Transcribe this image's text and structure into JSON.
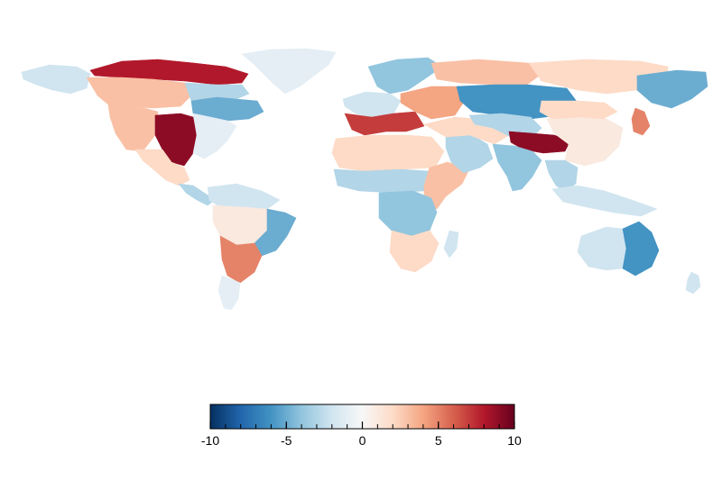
{
  "map": {
    "type": "choropleth-world",
    "projection": "equirectangular",
    "regions": [
      {
        "name": "canadian-arctic",
        "value": 8
      },
      {
        "name": "alaska",
        "value": -2
      },
      {
        "name": "western-canada",
        "value": 3
      },
      {
        "name": "hudson-bay-region",
        "value": -3
      },
      {
        "name": "great-lakes-east-canada",
        "value": -5
      },
      {
        "name": "western-usa",
        "value": 3
      },
      {
        "name": "southern-great-plains",
        "value": 9
      },
      {
        "name": "eastern-usa",
        "value": -1
      },
      {
        "name": "greenland",
        "value": -1
      },
      {
        "name": "mexico",
        "value": 2
      },
      {
        "name": "central-america",
        "value": -3
      },
      {
        "name": "northern-south-america",
        "value": -2
      },
      {
        "name": "amazon",
        "value": 1
      },
      {
        "name": "eastern-brazil",
        "value": -5
      },
      {
        "name": "gran-chaco",
        "value": 5
      },
      {
        "name": "southern-andes-patagonia",
        "value": -1
      },
      {
        "name": "scandinavia",
        "value": -4
      },
      {
        "name": "western-europe",
        "value": -2
      },
      {
        "name": "mediterranean-europe",
        "value": 7
      },
      {
        "name": "eastern-europe",
        "value": 4
      },
      {
        "name": "northern-russia",
        "value": 3
      },
      {
        "name": "west-siberia",
        "value": -6
      },
      {
        "name": "east-siberia",
        "value": 2
      },
      {
        "name": "far-east-russia",
        "value": -5
      },
      {
        "name": "north-africa-sahara",
        "value": 2
      },
      {
        "name": "sahel",
        "value": -3
      },
      {
        "name": "east-africa-horn",
        "value": 3
      },
      {
        "name": "central-africa",
        "value": -4
      },
      {
        "name": "southern-africa",
        "value": 2
      },
      {
        "name": "madagascar",
        "value": -2
      },
      {
        "name": "arabian-peninsula",
        "value": -3
      },
      {
        "name": "middle-east-iran",
        "value": 2
      },
      {
        "name": "central-asia",
        "value": -3
      },
      {
        "name": "tibetan-plateau",
        "value": 9
      },
      {
        "name": "india",
        "value": -4
      },
      {
        "name": "china",
        "value": 1
      },
      {
        "name": "mongolia",
        "value": 2
      },
      {
        "name": "southeast-asia",
        "value": -3
      },
      {
        "name": "japan",
        "value": 5
      },
      {
        "name": "indonesia-philippines",
        "value": -2
      },
      {
        "name": "australia-west",
        "value": -2
      },
      {
        "name": "australia-east",
        "value": -6
      },
      {
        "name": "new-zealand",
        "value": -2
      }
    ]
  },
  "colorbar": {
    "min": -10,
    "max": 10,
    "colormap": "RdBu_r",
    "stops": [
      "#053061",
      "#2166ac",
      "#4393c3",
      "#92c5de",
      "#d1e5f0",
      "#f7f7f7",
      "#fddbc7",
      "#f4a582",
      "#d6604d",
      "#b2182b",
      "#67001f"
    ],
    "major_ticks": [
      -10,
      -5,
      0,
      5,
      10
    ],
    "tick_labels": [
      "-10",
      "-5",
      "0",
      "5",
      "10"
    ],
    "minor_tick_step": 1
  }
}
